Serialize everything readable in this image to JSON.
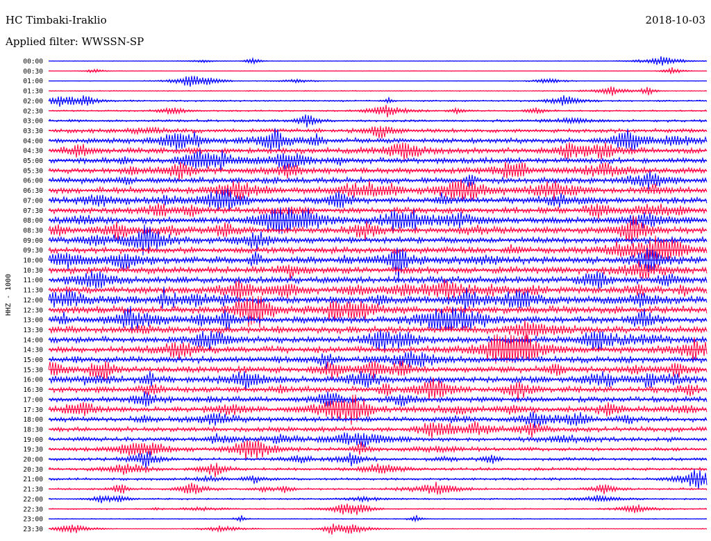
{
  "header": {
    "station": "HC Timbaki-Iraklio",
    "date": "2018-10-03",
    "filter": "Applied filter: WWSSN-SP"
  },
  "chart_data": {
    "type": "line",
    "title": "HC Timbaki-Iraklio",
    "subtitle": "Applied filter: WWSSN-SP",
    "ylabel": "HHZ - 1000",
    "xlabel": "",
    "grid": false,
    "legend": "none",
    "colors": [
      "#0000ff",
      "#ff0040"
    ],
    "row_labels": [
      "00:00",
      "00:30",
      "01:00",
      "01:30",
      "02:00",
      "02:30",
      "03:00",
      "03:30",
      "04:00",
      "04:30",
      "05:00",
      "05:30",
      "06:00",
      "06:30",
      "07:00",
      "07:30",
      "08:00",
      "08:30",
      "09:00",
      "09:30",
      "10:00",
      "10:30",
      "11:00",
      "11:30",
      "12:00",
      "12:30",
      "13:00",
      "13:30",
      "14:00",
      "14:30",
      "15:00",
      "15:30",
      "16:00",
      "16:30",
      "17:00",
      "17:30",
      "18:00",
      "18:30",
      "19:00",
      "19:30",
      "20:00",
      "20:30",
      "21:00",
      "21:30",
      "22:00",
      "22:30",
      "23:00",
      "23:30"
    ],
    "noise_level": [
      0.3,
      0.3,
      0.3,
      0.6,
      1.0,
      1.0,
      1.6,
      2.6,
      3.3,
      3.6,
      3.6,
      3.6,
      3.8,
      3.8,
      3.8,
      3.8,
      3.8,
      3.8,
      4.0,
      4.0,
      4.3,
      4.3,
      4.3,
      4.3,
      4.6,
      4.6,
      4.3,
      4.3,
      4.0,
      4.0,
      4.0,
      4.0,
      4.0,
      3.8,
      3.6,
      3.3,
      3.0,
      3.0,
      2.6,
      2.3,
      2.0,
      1.8,
      1.6,
      1.3,
      1.0,
      0.8,
      0.6,
      0.5
    ]
  }
}
